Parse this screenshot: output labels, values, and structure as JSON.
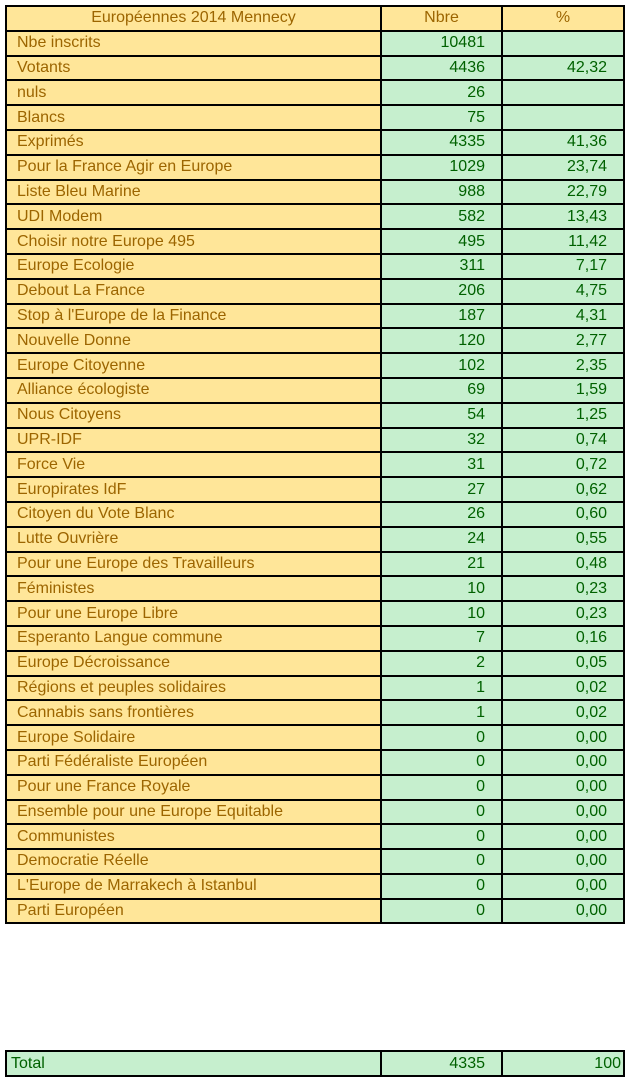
{
  "header": {
    "title": "Européennes 2014 Mennecy",
    "col_count": "Nbre",
    "col_pct": "%"
  },
  "rows": [
    {
      "label": "Nbe inscrits",
      "count": "10481",
      "pct": ""
    },
    {
      "label": "Votants",
      "count": "4436",
      "pct": "42,32"
    },
    {
      "label": "nuls",
      "count": "26",
      "pct": ""
    },
    {
      "label": "Blancs",
      "count": "75",
      "pct": ""
    },
    {
      "label": "Exprimés",
      "count": "4335",
      "pct": "41,36"
    },
    {
      "label": "Pour la France Agir en Europe",
      "count": "1029",
      "pct": "23,74"
    },
    {
      "label": "Liste Bleu Marine",
      "count": "988",
      "pct": "22,79"
    },
    {
      "label": "UDI Modem",
      "count": "582",
      "pct": "13,43"
    },
    {
      "label": "Choisir notre Europe 495",
      "count": "495",
      "pct": "11,42"
    },
    {
      "label": "Europe Ecologie",
      "count": "311",
      "pct": "7,17"
    },
    {
      "label": "Debout La France",
      "count": "206",
      "pct": "4,75"
    },
    {
      "label": "Stop à l'Europe de la Finance",
      "count": "187",
      "pct": "4,31"
    },
    {
      "label": "Nouvelle Donne",
      "count": "120",
      "pct": "2,77"
    },
    {
      "label": "Europe Citoyenne",
      "count": "102",
      "pct": "2,35"
    },
    {
      "label": "Alliance écologiste",
      "count": "69",
      "pct": "1,59"
    },
    {
      "label": "Nous Citoyens",
      "count": "54",
      "pct": "1,25"
    },
    {
      "label": "UPR-IDF",
      "count": "32",
      "pct": "0,74"
    },
    {
      "label": "Force Vie",
      "count": "31",
      "pct": "0,72"
    },
    {
      "label": "Europirates IdF",
      "count": "27",
      "pct": "0,62"
    },
    {
      "label": "Citoyen du Vote Blanc",
      "count": "26",
      "pct": "0,60"
    },
    {
      "label": "Lutte Ouvrière",
      "count": "24",
      "pct": "0,55"
    },
    {
      "label": "Pour une Europe des Travailleurs",
      "count": "21",
      "pct": "0,48"
    },
    {
      "label": "Féministes",
      "count": "10",
      "pct": "0,23"
    },
    {
      "label": "Pour une Europe Libre",
      "count": "10",
      "pct": "0,23"
    },
    {
      "label": "Esperanto Langue commune",
      "count": "7",
      "pct": "0,16"
    },
    {
      "label": "Europe Décroissance",
      "count": "2",
      "pct": "0,05"
    },
    {
      "label": "Régions et peuples solidaires",
      "count": "1",
      "pct": "0,02"
    },
    {
      "label": "Cannabis sans frontières",
      "count": "1",
      "pct": "0,02"
    },
    {
      "label": "Europe Solidaire",
      "count": "0",
      "pct": "0,00"
    },
    {
      "label": "Parti Fédéraliste Européen",
      "count": "0",
      "pct": "0,00"
    },
    {
      "label": "Pour une France Royale",
      "count": "0",
      "pct": "0,00"
    },
    {
      "label": "Ensemble pour une Europe Equitable",
      "count": "0",
      "pct": "0,00"
    },
    {
      "label": "Communistes",
      "count": "0",
      "pct": "0,00"
    },
    {
      "label": "Democratie Réelle",
      "count": "0",
      "pct": "0,00"
    },
    {
      "label": "L'Europe de Marrakech à Istanbul",
      "count": "0",
      "pct": "0,00"
    },
    {
      "label": "Parti Européen",
      "count": "0",
      "pct": "0,00"
    }
  ],
  "total": {
    "label": "Total",
    "count": "4335",
    "pct": "100"
  },
  "colors": {
    "neutral_bg": "#FFE699",
    "neutral_text": "#9C6500",
    "good_bg": "#C6EFCE",
    "good_text": "#006100",
    "border": "#000000"
  }
}
